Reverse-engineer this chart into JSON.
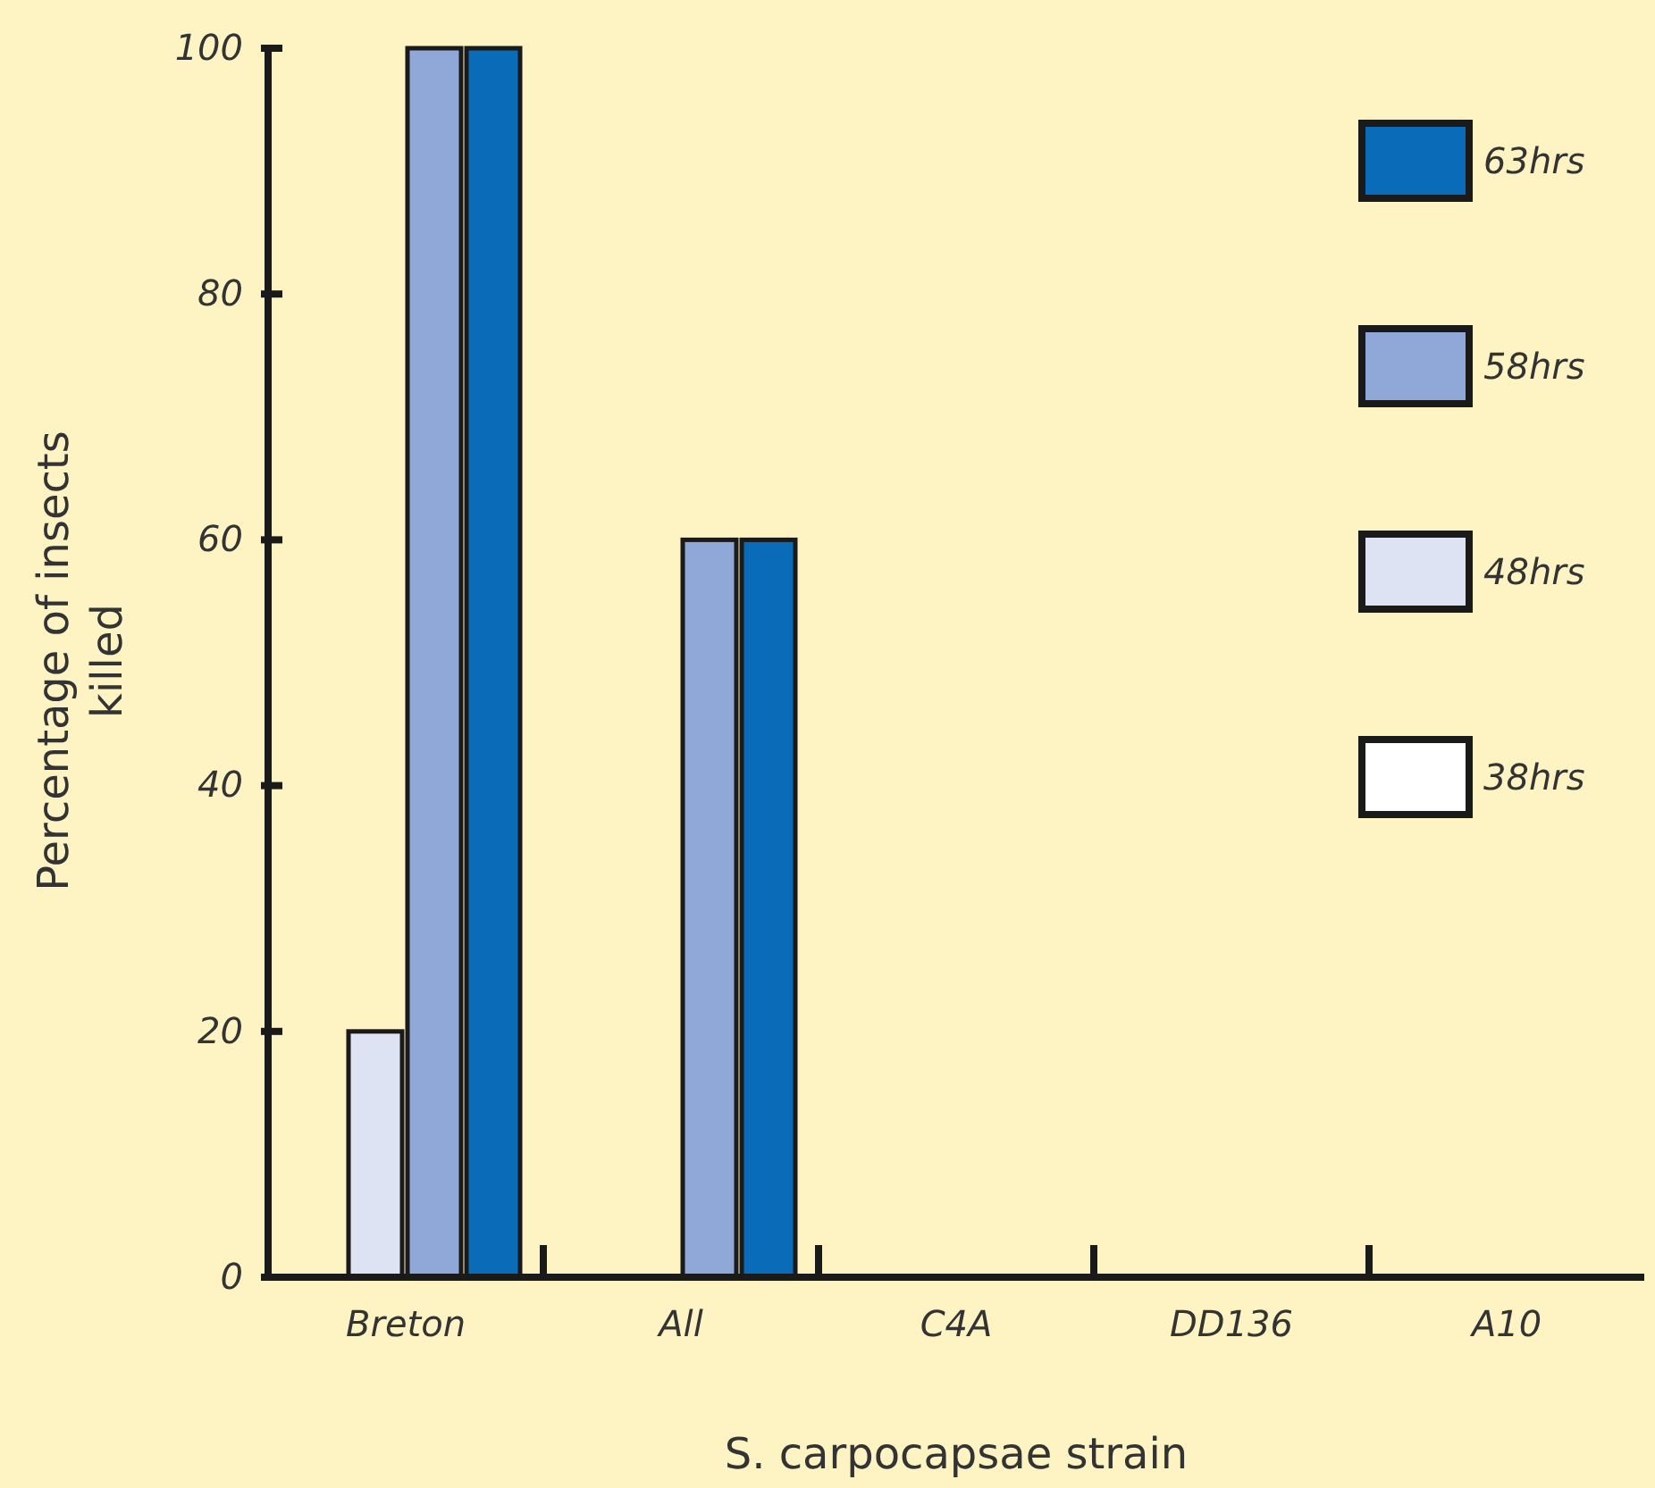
{
  "chart_data": {
    "type": "bar",
    "xlabel": "S. carpocapsae strain",
    "ylabel": "Percentage of insects killed",
    "categories": [
      "Breton",
      "All",
      "C4A",
      "DD136",
      "A10"
    ],
    "series": [
      {
        "name": "38hrs",
        "color": "#ffffff",
        "values": [
          0,
          0,
          0,
          0,
          0
        ]
      },
      {
        "name": "48hrs",
        "color": "#dde3f3",
        "values": [
          20,
          0,
          0,
          0,
          0
        ]
      },
      {
        "name": "58hrs",
        "color": "#8fa8d8",
        "values": [
          100,
          60,
          0,
          0,
          0
        ]
      },
      {
        "name": "63hrs",
        "color": "#0a6bb8",
        "values": [
          100,
          60,
          0,
          0,
          0
        ]
      }
    ],
    "ylim": [
      0,
      100
    ],
    "yticks": [
      0,
      20,
      40,
      60,
      80,
      100
    ],
    "grid": false,
    "legend": "top right"
  }
}
